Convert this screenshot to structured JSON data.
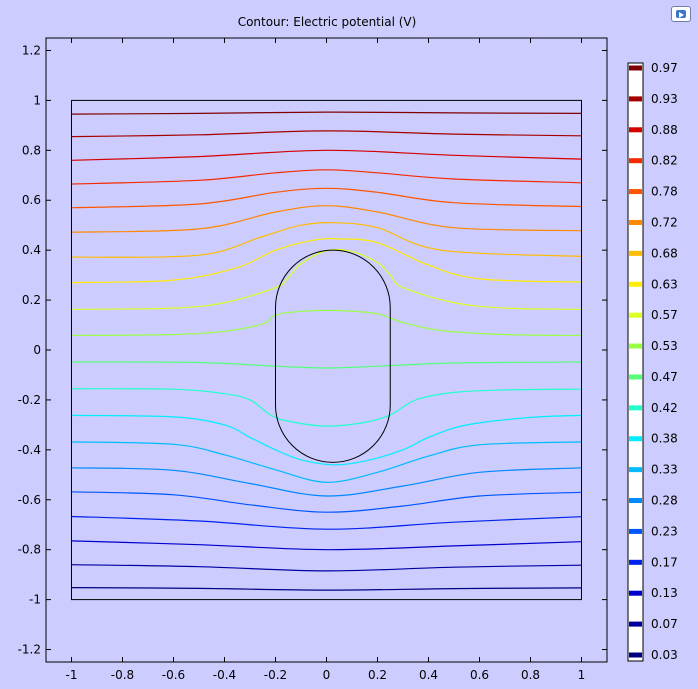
{
  "chart_data": {
    "type": "contour",
    "title": "Contour: Electric potential (V)",
    "xlabel": "",
    "ylabel": "",
    "xlim": [
      -1.1,
      1.1
    ],
    "ylim": [
      -1.25,
      1.25
    ],
    "x_ticks": [
      -1,
      -0.8,
      -0.6,
      -0.4,
      -0.2,
      0,
      0.2,
      0.4,
      0.6,
      0.8,
      1
    ],
    "x_tick_labels": [
      "-1",
      "-0.8",
      "-0.6",
      "-0.4",
      "-0.2",
      "0",
      "0.2",
      "0.4",
      "0.6",
      "0.8",
      "1"
    ],
    "y_ticks": [
      1.2,
      1,
      0.8,
      0.6,
      0.4,
      0.2,
      0,
      -0.2,
      -0.4,
      -0.6,
      -0.8,
      -1,
      -1.2
    ],
    "y_tick_labels": [
      "1.2",
      "1",
      "0.8",
      "0.6",
      "0.4",
      "0.2",
      "0",
      "-0.2",
      "-0.4",
      "-0.6",
      "-0.8",
      "-1",
      "-1.2"
    ],
    "domain_square": [
      [
        -1,
        -1
      ],
      [
        1,
        1
      ]
    ],
    "inner_boundary": {
      "shape": "stadium",
      "cx": 0.025,
      "cy": -0.025,
      "half_width": 0.225,
      "half_height": 0.425
    },
    "legend": {
      "placement": "right",
      "levels": [
        {
          "label": "0.97",
          "color": "#7f0000"
        },
        {
          "label": "0.93",
          "color": "#a50000"
        },
        {
          "label": "0.88",
          "color": "#d40000"
        },
        {
          "label": "0.82",
          "color": "#f52a00"
        },
        {
          "label": "0.78",
          "color": "#ff5500"
        },
        {
          "label": "0.72",
          "color": "#ff8800"
        },
        {
          "label": "0.68",
          "color": "#ffbb00"
        },
        {
          "label": "0.63",
          "color": "#ffee00"
        },
        {
          "label": "0.57",
          "color": "#ddff22"
        },
        {
          "label": "0.53",
          "color": "#99ff44"
        },
        {
          "label": "0.47",
          "color": "#55ff77"
        },
        {
          "label": "0.42",
          "color": "#22ffcc"
        },
        {
          "label": "0.38",
          "color": "#00eeff"
        },
        {
          "label": "0.33",
          "color": "#00bbff"
        },
        {
          "label": "0.28",
          "color": "#0088ff"
        },
        {
          "label": "0.23",
          "color": "#0055ff"
        },
        {
          "label": "0.17",
          "color": "#0022ee"
        },
        {
          "label": "0.13",
          "color": "#0000cc"
        },
        {
          "label": "0.07",
          "color": "#0000a0"
        },
        {
          "label": "0.03",
          "color": "#000080"
        }
      ]
    },
    "contours": [
      {
        "level": 0.97,
        "color": "#7f0000",
        "points": [
          [
            -1,
            0.945
          ],
          [
            -0.5,
            0.948
          ],
          [
            0,
            0.953
          ],
          [
            0.5,
            0.95
          ],
          [
            1,
            0.948
          ]
        ]
      },
      {
        "level": 0.93,
        "color": "#a50000",
        "points": [
          [
            -1,
            0.855
          ],
          [
            -0.5,
            0.862
          ],
          [
            0,
            0.878
          ],
          [
            0.5,
            0.865
          ],
          [
            1,
            0.858
          ]
        ]
      },
      {
        "level": 0.88,
        "color": "#d40000",
        "points": [
          [
            -1,
            0.76
          ],
          [
            -0.5,
            0.775
          ],
          [
            0,
            0.8
          ],
          [
            0.5,
            0.78
          ],
          [
            1,
            0.765
          ]
        ]
      },
      {
        "level": 0.82,
        "color": "#f52a00",
        "points": [
          [
            -1,
            0.665
          ],
          [
            -0.5,
            0.68
          ],
          [
            -0.2,
            0.71
          ],
          [
            0,
            0.722
          ],
          [
            0.2,
            0.71
          ],
          [
            0.5,
            0.685
          ],
          [
            1,
            0.67
          ]
        ]
      },
      {
        "level": 0.78,
        "color": "#ff5500",
        "points": [
          [
            -1,
            0.57
          ],
          [
            -0.5,
            0.585
          ],
          [
            -0.2,
            0.632
          ],
          [
            0,
            0.648
          ],
          [
            0.2,
            0.632
          ],
          [
            0.5,
            0.59
          ],
          [
            1,
            0.575
          ]
        ]
      },
      {
        "level": 0.72,
        "color": "#ff8800",
        "points": [
          [
            -1,
            0.472
          ],
          [
            -0.5,
            0.485
          ],
          [
            -0.2,
            0.553
          ],
          [
            0,
            0.578
          ],
          [
            0.2,
            0.553
          ],
          [
            0.5,
            0.49
          ],
          [
            1,
            0.478
          ]
        ]
      },
      {
        "level": 0.68,
        "color": "#ffbb00",
        "points": [
          [
            -1,
            0.372
          ],
          [
            -0.5,
            0.38
          ],
          [
            -0.25,
            0.455
          ],
          [
            -0.1,
            0.5
          ],
          [
            0.03,
            0.51
          ],
          [
            0.2,
            0.49
          ],
          [
            0.45,
            0.4
          ],
          [
            1,
            0.375
          ]
        ]
      },
      {
        "level": 0.63,
        "color": "#ffee00",
        "points": [
          [
            -1,
            0.27
          ],
          [
            -0.6,
            0.28
          ],
          [
            -0.35,
            0.33
          ],
          [
            -0.2,
            0.4
          ],
          [
            -0.05,
            0.44
          ],
          [
            0.05,
            0.445
          ],
          [
            0.2,
            0.43
          ],
          [
            0.4,
            0.34
          ],
          [
            0.6,
            0.285
          ],
          [
            1,
            0.272
          ]
        ]
      },
      {
        "level": 0.57,
        "color": "#ddff22",
        "points": [
          [
            -1,
            0.163
          ],
          [
            -0.6,
            0.168
          ],
          [
            -0.4,
            0.19
          ],
          [
            -0.2,
            0.25
          ],
          [
            -0.15,
            0.29
          ],
          [
            -0.1,
            0.345
          ],
          [
            0.0,
            0.398
          ],
          [
            0.1,
            0.395
          ],
          [
            0.2,
            0.35
          ],
          [
            0.25,
            0.3
          ],
          [
            0.3,
            0.25
          ],
          [
            0.5,
            0.19
          ],
          [
            0.7,
            0.168
          ],
          [
            1,
            0.163
          ]
        ]
      },
      {
        "level": 0.53,
        "color": "#99ff44",
        "points": [
          [
            -1,
            0.058
          ],
          [
            -0.6,
            0.062
          ],
          [
            -0.4,
            0.075
          ],
          [
            -0.25,
            0.105
          ],
          [
            -0.2,
            0.14
          ],
          [
            -0.1,
            0.155
          ],
          [
            0.05,
            0.158
          ],
          [
            0.2,
            0.145
          ],
          [
            0.3,
            0.11
          ],
          [
            0.45,
            0.078
          ],
          [
            0.7,
            0.062
          ],
          [
            1,
            0.058
          ]
        ]
      },
      {
        "level": 0.47,
        "color": "#55ff77",
        "points": [
          [
            -1,
            -0.048
          ],
          [
            -0.5,
            -0.05
          ],
          [
            -0.2,
            -0.065
          ],
          [
            0,
            -0.072
          ],
          [
            0.2,
            -0.065
          ],
          [
            0.5,
            -0.052
          ],
          [
            1,
            -0.048
          ]
        ]
      },
      {
        "level": 0.42,
        "color": "#22ffcc",
        "points": [
          [
            -1,
            -0.155
          ],
          [
            -0.6,
            -0.157
          ],
          [
            -0.4,
            -0.175
          ],
          [
            -0.3,
            -0.2
          ],
          [
            -0.22,
            -0.26
          ],
          [
            -0.15,
            -0.285
          ],
          [
            0.0,
            -0.305
          ],
          [
            0.15,
            -0.29
          ],
          [
            0.25,
            -0.26
          ],
          [
            0.35,
            -0.2
          ],
          [
            0.5,
            -0.17
          ],
          [
            0.7,
            -0.16
          ],
          [
            1,
            -0.157
          ]
        ]
      },
      {
        "level": 0.38,
        "color": "#00eeff",
        "points": [
          [
            -1,
            -0.262
          ],
          [
            -0.6,
            -0.268
          ],
          [
            -0.4,
            -0.3
          ],
          [
            -0.3,
            -0.35
          ],
          [
            -0.2,
            -0.4
          ],
          [
            -0.1,
            -0.44
          ],
          [
            0.03,
            -0.46
          ],
          [
            0.15,
            -0.445
          ],
          [
            0.3,
            -0.4
          ],
          [
            0.4,
            -0.35
          ],
          [
            0.55,
            -0.3
          ],
          [
            0.8,
            -0.27
          ],
          [
            1,
            -0.262
          ]
        ]
      },
      {
        "level": 0.33,
        "color": "#00bbff",
        "points": [
          [
            -1,
            -0.368
          ],
          [
            -0.6,
            -0.378
          ],
          [
            -0.4,
            -0.42
          ],
          [
            -0.2,
            -0.48
          ],
          [
            0,
            -0.53
          ],
          [
            0.2,
            -0.49
          ],
          [
            0.4,
            -0.425
          ],
          [
            0.6,
            -0.38
          ],
          [
            1,
            -0.368
          ]
        ]
      },
      {
        "level": 0.28,
        "color": "#0088ff",
        "points": [
          [
            -1,
            -0.472
          ],
          [
            -0.6,
            -0.482
          ],
          [
            -0.3,
            -0.535
          ],
          [
            0,
            -0.585
          ],
          [
            0.3,
            -0.545
          ],
          [
            0.6,
            -0.49
          ],
          [
            1,
            -0.472
          ]
        ]
      },
      {
        "level": 0.23,
        "color": "#0055ff",
        "points": [
          [
            -1,
            -0.568
          ],
          [
            -0.6,
            -0.58
          ],
          [
            -0.3,
            -0.62
          ],
          [
            0,
            -0.65
          ],
          [
            0.3,
            -0.625
          ],
          [
            0.6,
            -0.585
          ],
          [
            1,
            -0.57
          ]
        ]
      },
      {
        "level": 0.17,
        "color": "#0022ee",
        "points": [
          [
            -1,
            -0.667
          ],
          [
            -0.5,
            -0.685
          ],
          [
            0,
            -0.718
          ],
          [
            0.5,
            -0.69
          ],
          [
            1,
            -0.668
          ]
        ]
      },
      {
        "level": 0.13,
        "color": "#0000cc",
        "points": [
          [
            -1,
            -0.765
          ],
          [
            -0.5,
            -0.78
          ],
          [
            0,
            -0.8
          ],
          [
            0.5,
            -0.785
          ],
          [
            1,
            -0.768
          ]
        ]
      },
      {
        "level": 0.07,
        "color": "#0000a0",
        "points": [
          [
            -1,
            -0.86
          ],
          [
            -0.5,
            -0.868
          ],
          [
            0,
            -0.885
          ],
          [
            0.5,
            -0.87
          ],
          [
            1,
            -0.862
          ]
        ]
      },
      {
        "level": 0.03,
        "color": "#000080",
        "points": [
          [
            -1,
            -0.952
          ],
          [
            -0.5,
            -0.955
          ],
          [
            0,
            -0.962
          ],
          [
            0.5,
            -0.956
          ],
          [
            1,
            -0.953
          ]
        ]
      }
    ]
  }
}
